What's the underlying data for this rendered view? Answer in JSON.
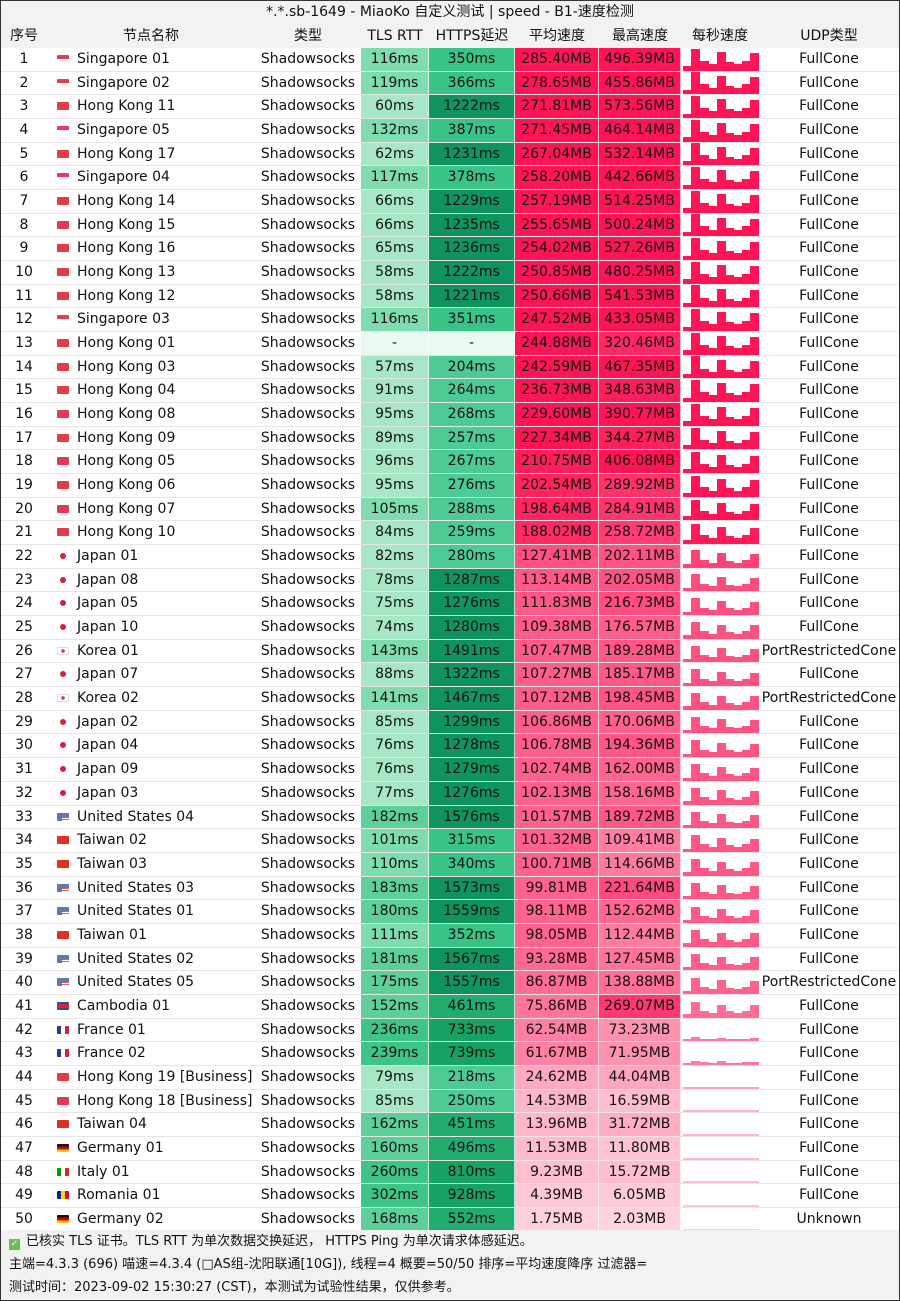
{
  "title": "*.*.sb-1649 - MiaoKo 自定义测试 | speed - B1-速度检测",
  "headers": {
    "idx": "序号",
    "name": "节点名称",
    "type": "类型",
    "tls": "TLS RTT",
    "https": "HTTPS延迟",
    "avg": "平均速度",
    "max": "最高速度",
    "spark": "每秒速度",
    "udp": "UDP类型"
  },
  "colors": {
    "header_bg": "#f2f2f2",
    "green_light": "#a6e6c4",
    "green_mid": "#3cc88a",
    "green_dark": "#0f9a60",
    "red_strong": "#ff1655",
    "red_light": "#ffd6df"
  },
  "rows": [
    {
      "idx": "1",
      "flag": "sg",
      "name": "Singapore 01",
      "type": "Shadowsocks",
      "tls": "116ms",
      "https": "350ms",
      "avg": "285.40MB",
      "max": "496.39MB",
      "udp": "FullCone"
    },
    {
      "idx": "2",
      "flag": "sg",
      "name": "Singapore 02",
      "type": "Shadowsocks",
      "tls": "119ms",
      "https": "366ms",
      "avg": "278.65MB",
      "max": "455.86MB",
      "udp": "FullCone"
    },
    {
      "idx": "3",
      "flag": "hk",
      "name": "Hong Kong 11",
      "type": "Shadowsocks",
      "tls": "60ms",
      "https": "1222ms",
      "avg": "271.81MB",
      "max": "573.56MB",
      "udp": "FullCone"
    },
    {
      "idx": "4",
      "flag": "sg",
      "name": "Singapore 05",
      "type": "Shadowsocks",
      "tls": "132ms",
      "https": "387ms",
      "avg": "271.45MB",
      "max": "464.14MB",
      "udp": "FullCone"
    },
    {
      "idx": "5",
      "flag": "hk",
      "name": "Hong Kong 17",
      "type": "Shadowsocks",
      "tls": "62ms",
      "https": "1231ms",
      "avg": "267.04MB",
      "max": "532.14MB",
      "udp": "FullCone"
    },
    {
      "idx": "6",
      "flag": "sg",
      "name": "Singapore 04",
      "type": "Shadowsocks",
      "tls": "117ms",
      "https": "378ms",
      "avg": "258.20MB",
      "max": "442.66MB",
      "udp": "FullCone"
    },
    {
      "idx": "7",
      "flag": "hk",
      "name": "Hong Kong 14",
      "type": "Shadowsocks",
      "tls": "66ms",
      "https": "1229ms",
      "avg": "257.19MB",
      "max": "514.25MB",
      "udp": "FullCone"
    },
    {
      "idx": "8",
      "flag": "hk",
      "name": "Hong Kong 15",
      "type": "Shadowsocks",
      "tls": "66ms",
      "https": "1235ms",
      "avg": "255.65MB",
      "max": "500.24MB",
      "udp": "FullCone"
    },
    {
      "idx": "9",
      "flag": "hk",
      "name": "Hong Kong 16",
      "type": "Shadowsocks",
      "tls": "65ms",
      "https": "1236ms",
      "avg": "254.02MB",
      "max": "527.26MB",
      "udp": "FullCone"
    },
    {
      "idx": "10",
      "flag": "hk",
      "name": "Hong Kong 13",
      "type": "Shadowsocks",
      "tls": "58ms",
      "https": "1222ms",
      "avg": "250.85MB",
      "max": "480.25MB",
      "udp": "FullCone"
    },
    {
      "idx": "11",
      "flag": "hk",
      "name": "Hong Kong 12",
      "type": "Shadowsocks",
      "tls": "58ms",
      "https": "1221ms",
      "avg": "250.66MB",
      "max": "541.53MB",
      "udp": "FullCone"
    },
    {
      "idx": "12",
      "flag": "sg",
      "name": "Singapore 03",
      "type": "Shadowsocks",
      "tls": "116ms",
      "https": "351ms",
      "avg": "247.52MB",
      "max": "433.05MB",
      "udp": "FullCone"
    },
    {
      "idx": "13",
      "flag": "hk",
      "name": "Hong Kong 01",
      "type": "Shadowsocks",
      "tls": "-",
      "https": "-",
      "avg": "244.88MB",
      "max": "320.46MB",
      "udp": "FullCone"
    },
    {
      "idx": "14",
      "flag": "hk",
      "name": "Hong Kong 03",
      "type": "Shadowsocks",
      "tls": "57ms",
      "https": "204ms",
      "avg": "242.59MB",
      "max": "467.35MB",
      "udp": "FullCone"
    },
    {
      "idx": "15",
      "flag": "hk",
      "name": "Hong Kong 04",
      "type": "Shadowsocks",
      "tls": "91ms",
      "https": "264ms",
      "avg": "236.73MB",
      "max": "348.63MB",
      "udp": "FullCone"
    },
    {
      "idx": "16",
      "flag": "hk",
      "name": "Hong Kong 08",
      "type": "Shadowsocks",
      "tls": "95ms",
      "https": "268ms",
      "avg": "229.60MB",
      "max": "390.77MB",
      "udp": "FullCone"
    },
    {
      "idx": "17",
      "flag": "hk",
      "name": "Hong Kong 09",
      "type": "Shadowsocks",
      "tls": "89ms",
      "https": "257ms",
      "avg": "227.34MB",
      "max": "344.27MB",
      "udp": "FullCone"
    },
    {
      "idx": "18",
      "flag": "hk",
      "name": "Hong Kong 05",
      "type": "Shadowsocks",
      "tls": "96ms",
      "https": "267ms",
      "avg": "210.75MB",
      "max": "406.08MB",
      "udp": "FullCone"
    },
    {
      "idx": "19",
      "flag": "hk",
      "name": "Hong Kong 06",
      "type": "Shadowsocks",
      "tls": "95ms",
      "https": "276ms",
      "avg": "202.54MB",
      "max": "289.92MB",
      "udp": "FullCone"
    },
    {
      "idx": "20",
      "flag": "hk",
      "name": "Hong Kong 07",
      "type": "Shadowsocks",
      "tls": "105ms",
      "https": "288ms",
      "avg": "198.64MB",
      "max": "284.91MB",
      "udp": "FullCone"
    },
    {
      "idx": "21",
      "flag": "hk",
      "name": "Hong Kong 10",
      "type": "Shadowsocks",
      "tls": "84ms",
      "https": "259ms",
      "avg": "188.02MB",
      "max": "258.72MB",
      "udp": "FullCone"
    },
    {
      "idx": "22",
      "flag": "jp",
      "name": "Japan 01",
      "type": "Shadowsocks",
      "tls": "82ms",
      "https": "280ms",
      "avg": "127.41MB",
      "max": "202.11MB",
      "udp": "FullCone"
    },
    {
      "idx": "23",
      "flag": "jp",
      "name": "Japan 08",
      "type": "Shadowsocks",
      "tls": "78ms",
      "https": "1287ms",
      "avg": "113.14MB",
      "max": "202.05MB",
      "udp": "FullCone"
    },
    {
      "idx": "24",
      "flag": "jp",
      "name": "Japan 05",
      "type": "Shadowsocks",
      "tls": "75ms",
      "https": "1276ms",
      "avg": "111.83MB",
      "max": "216.73MB",
      "udp": "FullCone"
    },
    {
      "idx": "25",
      "flag": "jp",
      "name": "Japan 10",
      "type": "Shadowsocks",
      "tls": "74ms",
      "https": "1280ms",
      "avg": "109.38MB",
      "max": "176.57MB",
      "udp": "FullCone"
    },
    {
      "idx": "26",
      "flag": "kr",
      "name": "Korea 01",
      "type": "Shadowsocks",
      "tls": "143ms",
      "https": "1491ms",
      "avg": "107.47MB",
      "max": "189.28MB",
      "udp": "PortRestrictedCone"
    },
    {
      "idx": "27",
      "flag": "jp",
      "name": "Japan 07",
      "type": "Shadowsocks",
      "tls": "88ms",
      "https": "1322ms",
      "avg": "107.27MB",
      "max": "185.17MB",
      "udp": "FullCone"
    },
    {
      "idx": "28",
      "flag": "kr",
      "name": "Korea 02",
      "type": "Shadowsocks",
      "tls": "141ms",
      "https": "1467ms",
      "avg": "107.12MB",
      "max": "198.45MB",
      "udp": "PortRestrictedCone"
    },
    {
      "idx": "29",
      "flag": "jp",
      "name": "Japan 02",
      "type": "Shadowsocks",
      "tls": "85ms",
      "https": "1299ms",
      "avg": "106.86MB",
      "max": "170.06MB",
      "udp": "FullCone"
    },
    {
      "idx": "30",
      "flag": "jp",
      "name": "Japan 04",
      "type": "Shadowsocks",
      "tls": "76ms",
      "https": "1278ms",
      "avg": "106.78MB",
      "max": "194.36MB",
      "udp": "FullCone"
    },
    {
      "idx": "31",
      "flag": "jp",
      "name": "Japan 09",
      "type": "Shadowsocks",
      "tls": "76ms",
      "https": "1279ms",
      "avg": "102.74MB",
      "max": "162.00MB",
      "udp": "FullCone"
    },
    {
      "idx": "32",
      "flag": "jp",
      "name": "Japan 03",
      "type": "Shadowsocks",
      "tls": "77ms",
      "https": "1276ms",
      "avg": "102.13MB",
      "max": "158.16MB",
      "udp": "FullCone"
    },
    {
      "idx": "33",
      "flag": "us",
      "name": "United States 04",
      "type": "Shadowsocks",
      "tls": "182ms",
      "https": "1576ms",
      "avg": "101.57MB",
      "max": "189.72MB",
      "udp": "FullCone"
    },
    {
      "idx": "34",
      "flag": "tw",
      "name": "Taiwan 02",
      "type": "Shadowsocks",
      "tls": "101ms",
      "https": "315ms",
      "avg": "101.32MB",
      "max": "109.41MB",
      "udp": "FullCone"
    },
    {
      "idx": "35",
      "flag": "tw",
      "name": "Taiwan 03",
      "type": "Shadowsocks",
      "tls": "110ms",
      "https": "340ms",
      "avg": "100.71MB",
      "max": "114.66MB",
      "udp": "FullCone"
    },
    {
      "idx": "36",
      "flag": "us",
      "name": "United States 03",
      "type": "Shadowsocks",
      "tls": "183ms",
      "https": "1573ms",
      "avg": "99.81MB",
      "max": "221.64MB",
      "udp": "FullCone"
    },
    {
      "idx": "37",
      "flag": "us",
      "name": "United States 01",
      "type": "Shadowsocks",
      "tls": "180ms",
      "https": "1559ms",
      "avg": "98.11MB",
      "max": "152.62MB",
      "udp": "FullCone"
    },
    {
      "idx": "38",
      "flag": "tw",
      "name": "Taiwan 01",
      "type": "Shadowsocks",
      "tls": "111ms",
      "https": "352ms",
      "avg": "98.05MB",
      "max": "112.44MB",
      "udp": "FullCone"
    },
    {
      "idx": "39",
      "flag": "us",
      "name": "United States 02",
      "type": "Shadowsocks",
      "tls": "181ms",
      "https": "1567ms",
      "avg": "93.28MB",
      "max": "127.45MB",
      "udp": "FullCone"
    },
    {
      "idx": "40",
      "flag": "us",
      "name": "United States 05",
      "type": "Shadowsocks",
      "tls": "175ms",
      "https": "1557ms",
      "avg": "86.87MB",
      "max": "138.88MB",
      "udp": "PortRestrictedCone"
    },
    {
      "idx": "41",
      "flag": "kh",
      "name": "Cambodia 01",
      "type": "Shadowsocks",
      "tls": "152ms",
      "https": "461ms",
      "avg": "75.86MB",
      "max": "269.07MB",
      "udp": "FullCone"
    },
    {
      "idx": "42",
      "flag": "fr",
      "name": "France 01",
      "type": "Shadowsocks",
      "tls": "236ms",
      "https": "733ms",
      "avg": "62.54MB",
      "max": "73.23MB",
      "udp": "FullCone"
    },
    {
      "idx": "43",
      "flag": "fr",
      "name": "France 02",
      "type": "Shadowsocks",
      "tls": "239ms",
      "https": "739ms",
      "avg": "61.67MB",
      "max": "71.95MB",
      "udp": "FullCone"
    },
    {
      "idx": "44",
      "flag": "hk",
      "name": "Hong Kong 19 [Business]",
      "type": "Shadowsocks",
      "tls": "79ms",
      "https": "218ms",
      "avg": "24.62MB",
      "max": "44.04MB",
      "udp": "FullCone"
    },
    {
      "idx": "45",
      "flag": "hk",
      "name": "Hong Kong 18 [Business]",
      "type": "Shadowsocks",
      "tls": "85ms",
      "https": "250ms",
      "avg": "14.53MB",
      "max": "16.59MB",
      "udp": "FullCone"
    },
    {
      "idx": "46",
      "flag": "tw",
      "name": "Taiwan 04",
      "type": "Shadowsocks",
      "tls": "162ms",
      "https": "451ms",
      "avg": "13.96MB",
      "max": "31.72MB",
      "udp": "FullCone"
    },
    {
      "idx": "47",
      "flag": "de",
      "name": "Germany 01",
      "type": "Shadowsocks",
      "tls": "160ms",
      "https": "496ms",
      "avg": "11.53MB",
      "max": "11.80MB",
      "udp": "FullCone"
    },
    {
      "idx": "48",
      "flag": "it",
      "name": "Italy 01",
      "type": "Shadowsocks",
      "tls": "260ms",
      "https": "810ms",
      "avg": "9.23MB",
      "max": "15.72MB",
      "udp": "FullCone"
    },
    {
      "idx": "49",
      "flag": "ro",
      "name": "Romania 01",
      "type": "Shadowsocks",
      "tls": "302ms",
      "https": "928ms",
      "avg": "4.39MB",
      "max": "6.05MB",
      "udp": "FullCone"
    },
    {
      "idx": "50",
      "flag": "de",
      "name": "Germany 02",
      "type": "Shadowsocks",
      "tls": "168ms",
      "https": "552ms",
      "avg": "1.75MB",
      "max": "2.03MB",
      "udp": "Unknown"
    }
  ],
  "footer": {
    "line1": "已核实 TLS 证书。TLS RTT 为单次数据交换延迟， HTTPS Ping 为单次请求体感延迟。",
    "line2": "主端=4.3.3 (696) 喵速=4.3.4 (□AS组-沈阳联通[10G]), 线程=4 概要=50/50 排序=平均速度降序 过滤器=",
    "line3": "测试时间：2023-09-02 15:30:27 (CST)，本测试为试验性结果，仅供参考。"
  }
}
